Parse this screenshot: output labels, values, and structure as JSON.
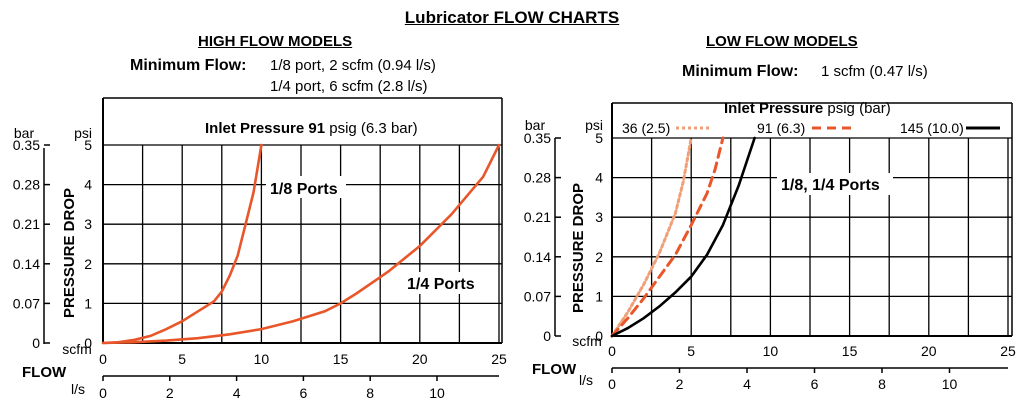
{
  "title": "Lubricator FLOW CHARTS",
  "colors": {
    "grid": "#000000",
    "curve": "#e8562a",
    "curve_light": "#f0a078",
    "black": "#000000"
  },
  "left": {
    "subtitle": "HIGH  FLOW MODELS",
    "min_flow_label": "Minimum Flow:",
    "min_flow_lines": [
      "1/8 port, 2 scfm (0.94 l/s)",
      "1/4 port, 6 scfm (2.8 l/s)"
    ]
  },
  "right": {
    "subtitle": "LOW FLOW MODELS",
    "min_flow_label": "Minimum Flow:",
    "min_flow_lines": [
      "1 scfm (0.47 l/s)"
    ]
  },
  "chart_data": [
    {
      "type": "line",
      "annotation_bold": "Inlet Pressure 91",
      "annotation_rest": " psig (6.3 bar)",
      "xlabel": "FLOW",
      "ylabel": "PRESSURE DROP",
      "x_unit": "scfm",
      "x2_unit": "l/s",
      "y_unit": "psi",
      "y2_unit": "bar",
      "xlim": [
        0,
        25
      ],
      "ylim": [
        0,
        5
      ],
      "x_ticks": [
        "0",
        "5",
        "10",
        "15",
        "20",
        "25"
      ],
      "y_ticks": [
        "0",
        "1",
        "2",
        "3",
        "4",
        "5"
      ],
      "x2_ticks": [
        "0",
        "2",
        "4",
        "6",
        "8",
        "10"
      ],
      "y2_ticks": [
        "0",
        "0.07",
        "0.14",
        "0.21",
        "0.28",
        "0.35"
      ],
      "series": [
        {
          "name": "1/8 Ports",
          "style": "solid",
          "x": [
            0,
            1,
            2,
            3,
            4,
            5,
            6,
            7,
            7.5,
            8,
            8.5,
            9,
            9.5,
            10
          ],
          "y": [
            0,
            0.02,
            0.08,
            0.18,
            0.35,
            0.55,
            0.8,
            1.05,
            1.3,
            1.7,
            2.2,
            3.0,
            3.8,
            5.0
          ]
        },
        {
          "name": "1/4 Ports",
          "style": "solid",
          "x": [
            0,
            2,
            4,
            6,
            8,
            10,
            12,
            14,
            15,
            16,
            18,
            20,
            22,
            24,
            25
          ],
          "y": [
            0,
            0.02,
            0.06,
            0.12,
            0.22,
            0.35,
            0.55,
            0.8,
            1.0,
            1.25,
            1.8,
            2.45,
            3.25,
            4.2,
            5.0
          ]
        }
      ]
    },
    {
      "type": "line",
      "legend_title_bold": "Inlet Pressure",
      "legend_title_rest": " psig (bar)",
      "annotation": "1/8, 1/4 Ports",
      "xlabel": "FLOW",
      "ylabel": "PRESSURE DROP",
      "x_unit": "scfm",
      "x2_unit": "l/s",
      "y_unit": "psi",
      "y2_unit": "bar",
      "xlim": [
        0,
        25
      ],
      "ylim": [
        0,
        5
      ],
      "x_ticks": [
        "0",
        "5",
        "10",
        "15",
        "20",
        "25"
      ],
      "y_ticks": [
        "0",
        "1",
        "2",
        "3",
        "4",
        "5"
      ],
      "x2_ticks": [
        "0",
        "2",
        "4",
        "6",
        "8",
        "10"
      ],
      "y2_ticks": [
        "0",
        "0.07",
        "0.14",
        "0.21",
        "0.28",
        "0.35"
      ],
      "series": [
        {
          "name": "36 (2.5)",
          "style": "dotted",
          "x": [
            0,
            1,
            2,
            3,
            4,
            4.5,
            5
          ],
          "y": [
            0,
            0.6,
            1.3,
            2.1,
            3.1,
            3.9,
            5.0
          ]
        },
        {
          "name": "91 (6.3)",
          "style": "dashed",
          "x": [
            0,
            1,
            2,
            3,
            4,
            5,
            6,
            6.5,
            7
          ],
          "y": [
            0,
            0.45,
            0.95,
            1.5,
            2.05,
            2.8,
            3.6,
            4.2,
            5.0
          ]
        },
        {
          "name": "145 (10.0)",
          "style": "solid",
          "x": [
            0,
            1,
            2,
            3,
            4,
            5,
            6,
            7,
            8,
            9
          ],
          "y": [
            0,
            0.2,
            0.45,
            0.75,
            1.1,
            1.5,
            2.05,
            2.8,
            3.8,
            5.0
          ]
        }
      ]
    }
  ]
}
